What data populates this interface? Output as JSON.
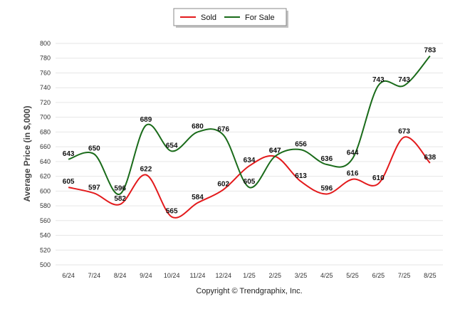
{
  "chart_data": {
    "type": "line",
    "title": "",
    "xlabel": "",
    "ylabel": "Average Price (in $,000)",
    "ylim": [
      500,
      800
    ],
    "ytick_step": 20,
    "grid": true,
    "legend_position": "top-center",
    "categories": [
      "6/24",
      "7/24",
      "8/24",
      "9/24",
      "10/24",
      "11/24",
      "12/24",
      "1/25",
      "2/25",
      "3/25",
      "4/25",
      "5/25",
      "6/25",
      "7/25",
      "8/25"
    ],
    "series": [
      {
        "name": "Sold",
        "color": "#e31a1c",
        "values": [
          605,
          597,
          582,
          622,
          565,
          584,
          602,
          634,
          647,
          613,
          596,
          616,
          610,
          673,
          638
        ]
      },
      {
        "name": "For Sale",
        "color": "#1a6b1a",
        "values": [
          643,
          650,
          596,
          689,
          654,
          680,
          676,
          605,
          647,
          656,
          636,
          644,
          743,
          743,
          783
        ]
      }
    ]
  },
  "footer": {
    "copyright": "Copyright © Trendgraphix, Inc."
  }
}
